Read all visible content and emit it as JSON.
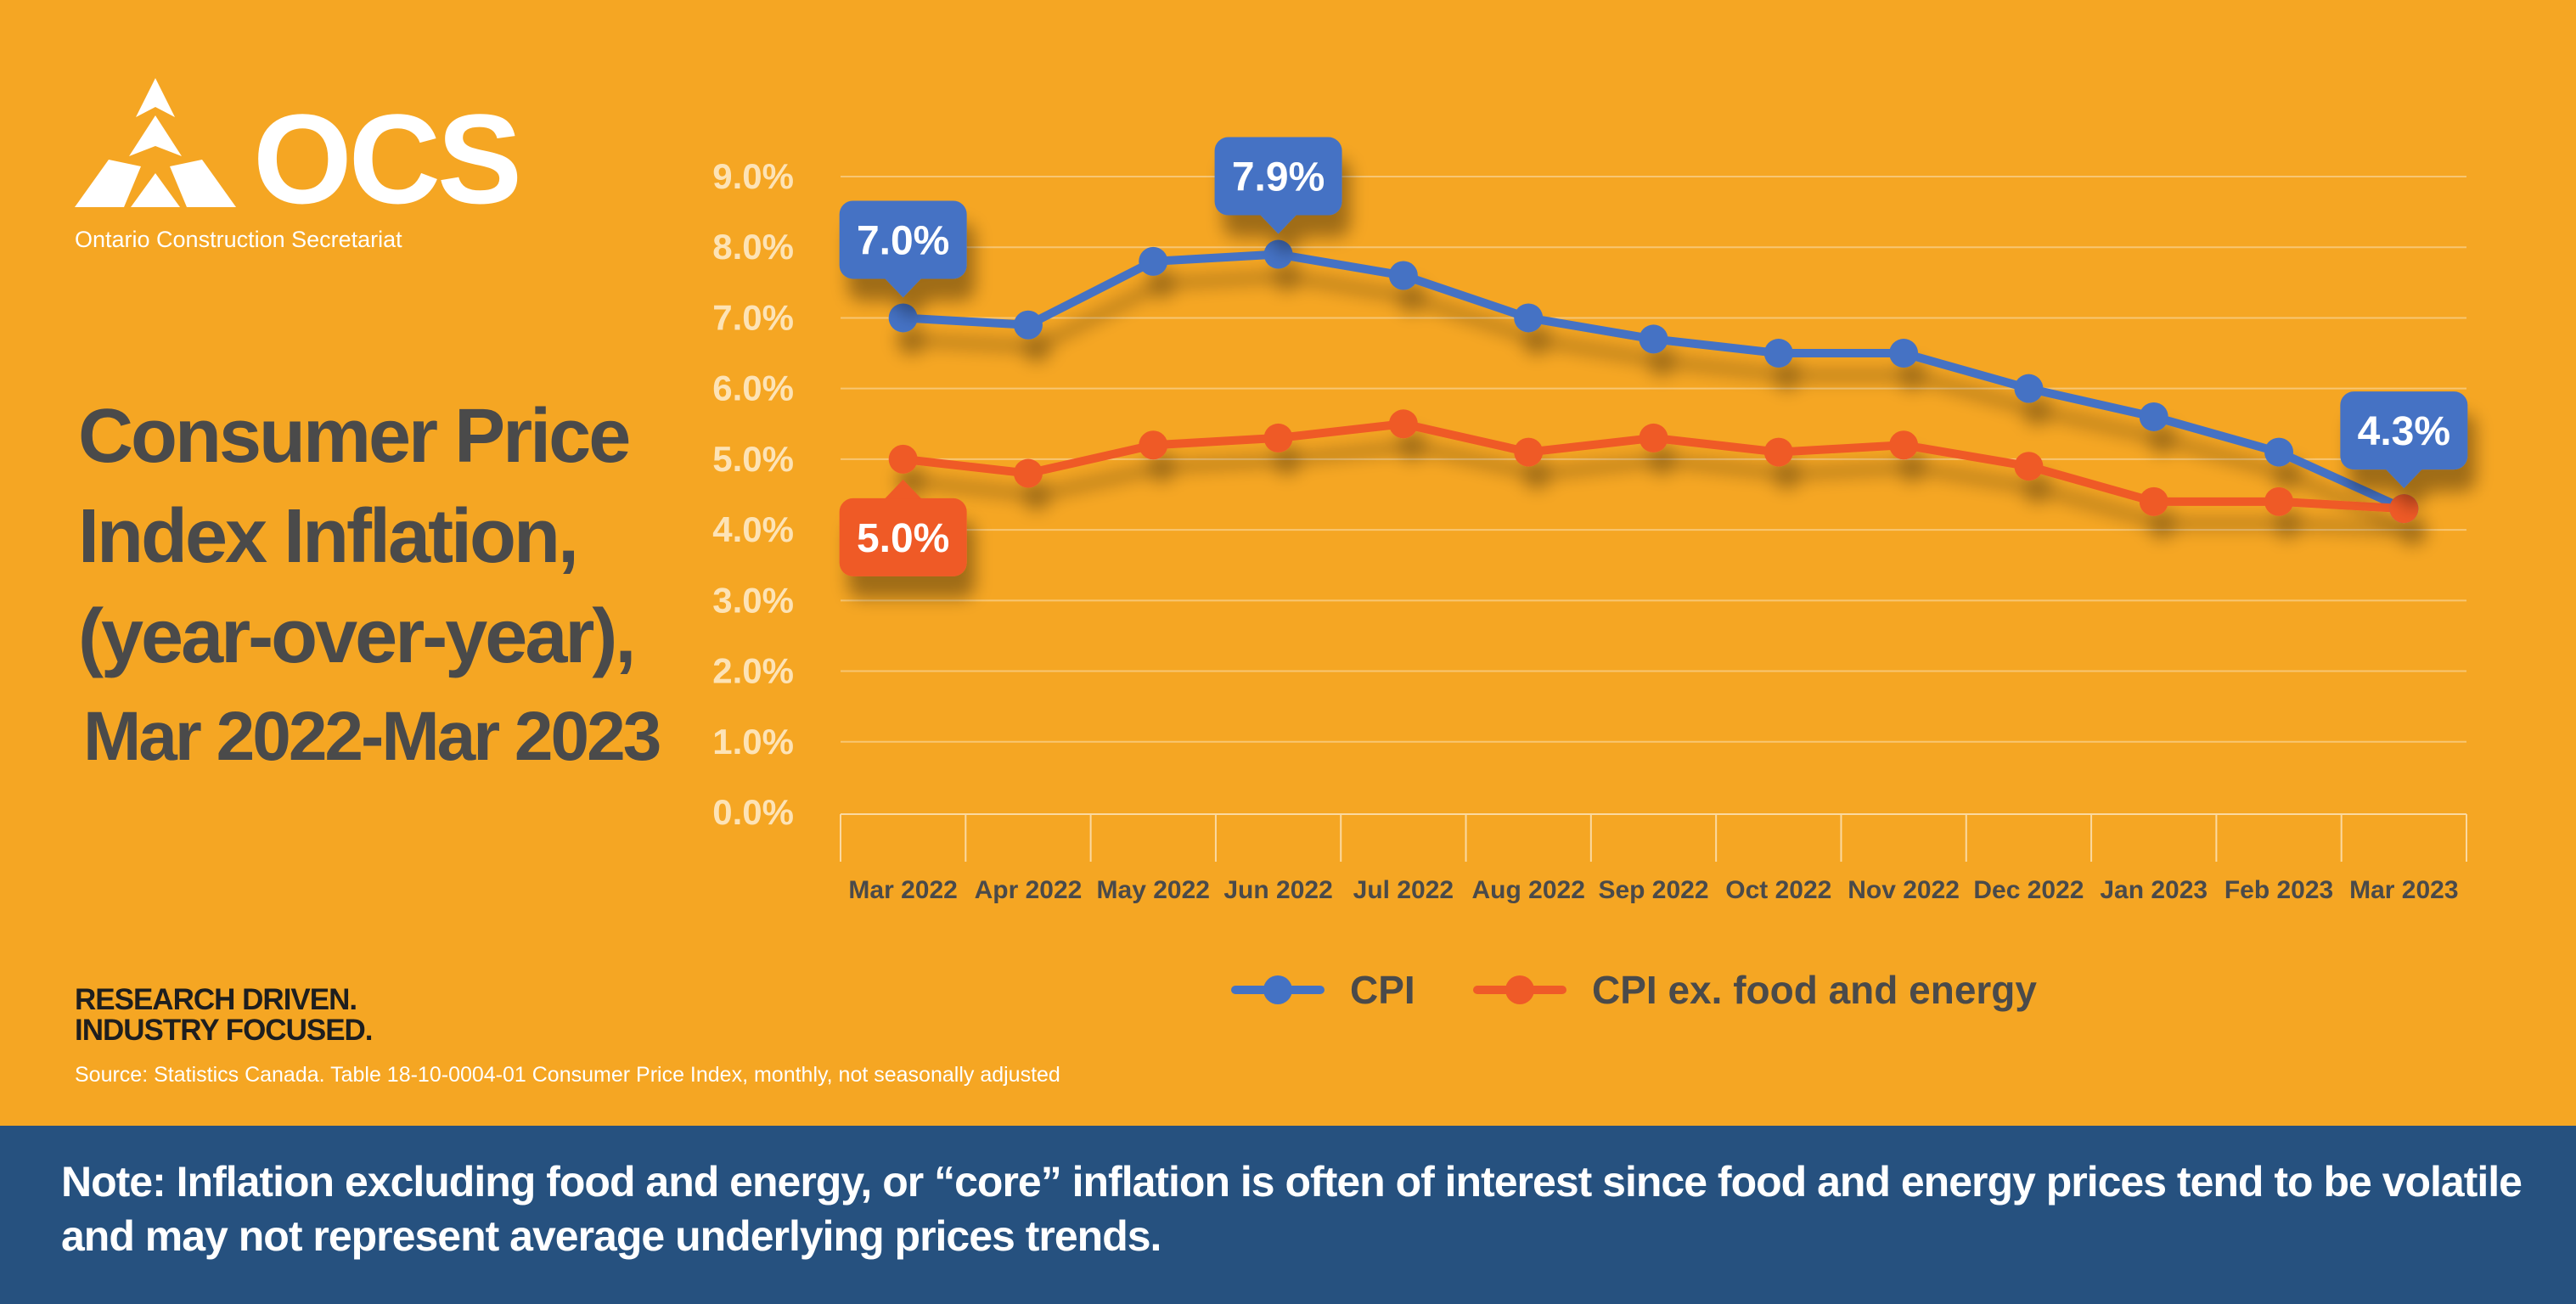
{
  "brand": {
    "logo_text": "OCS",
    "org_name": "Ontario Construction Secretariat",
    "tagline": [
      "RESEARCH DRIVEN.",
      "INDUSTRY FOCUSED."
    ]
  },
  "title_lines": [
    "Consumer Price",
    "Index Inflation,",
    "(year-over-year),",
    "Mar 2022-Mar 2023"
  ],
  "source": "Source: Statistics Canada. Table 18-10-0004-01  Consumer Price Index, monthly, not seasonally adjusted",
  "note": "Note: Inflation excluding food and energy, or “core” inflation is often of interest since food and energy prices tend to be volatile and may not represent average underlying prices trends.",
  "colors": {
    "background": "#f5a623",
    "cpi": "#4472c4",
    "core": "#ef5a28",
    "band": "#26517f",
    "title": "#4a4a4a"
  },
  "chart_data": {
    "type": "line",
    "title": "Consumer Price Index Inflation, (year-over-year), Mar 2022-Mar 2023",
    "categories": [
      "Mar 2022",
      "Apr 2022",
      "May 2022",
      "Jun 2022",
      "Jul 2022",
      "Aug 2022",
      "Sep 2022",
      "Oct 2022",
      "Nov 2022",
      "Dec 2022",
      "Jan 2023",
      "Feb 2023",
      "Mar 2023"
    ],
    "series": [
      {
        "name": "CPI",
        "values": [
          7.0,
          6.9,
          7.8,
          7.9,
          7.6,
          7.0,
          6.7,
          6.5,
          6.5,
          6.0,
          5.6,
          5.1,
          4.3
        ]
      },
      {
        "name": "CPI ex. food and energy",
        "values": [
          5.0,
          4.8,
          5.2,
          5.3,
          5.5,
          5.1,
          5.3,
          5.1,
          5.2,
          4.9,
          4.4,
          4.4,
          4.3
        ]
      }
    ],
    "ylim": [
      0,
      9
    ],
    "yticks": [
      "0.0%",
      "1.0%",
      "2.0%",
      "3.0%",
      "4.0%",
      "5.0%",
      "6.0%",
      "7.0%",
      "8.0%",
      "9.0%"
    ],
    "grid": true,
    "legend": "bottom",
    "annotations": [
      {
        "series": 0,
        "index": 0,
        "label": "7.0%"
      },
      {
        "series": 0,
        "index": 3,
        "label": "7.9%"
      },
      {
        "series": 0,
        "index": 12,
        "label": "4.3%"
      },
      {
        "series": 1,
        "index": 0,
        "label": "5.0%"
      }
    ]
  }
}
